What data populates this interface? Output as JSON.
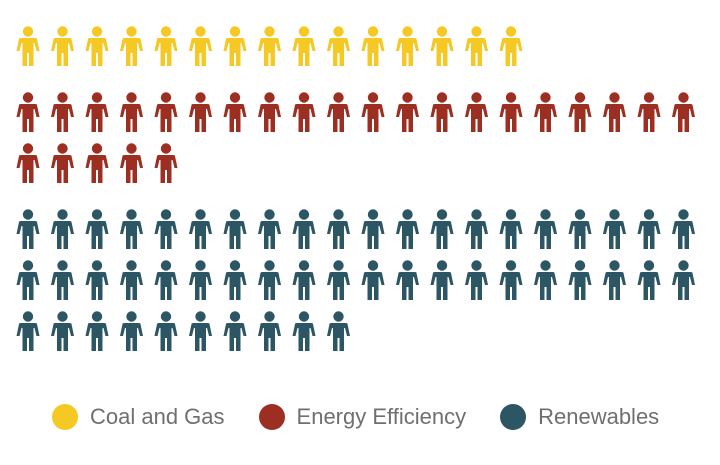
{
  "chart_data": {
    "type": "pictogram",
    "unit_icon": "person-icon",
    "icons_per_row": 20,
    "series": [
      {
        "name": "Coal and Gas",
        "count": 15,
        "color": "#f6c823"
      },
      {
        "name": "Energy Efficiency",
        "count": 25,
        "color": "#9c2f21"
      },
      {
        "name": "Renewables",
        "count": 50,
        "color": "#2c5664"
      }
    ],
    "legend_placement": "bottom-left"
  }
}
